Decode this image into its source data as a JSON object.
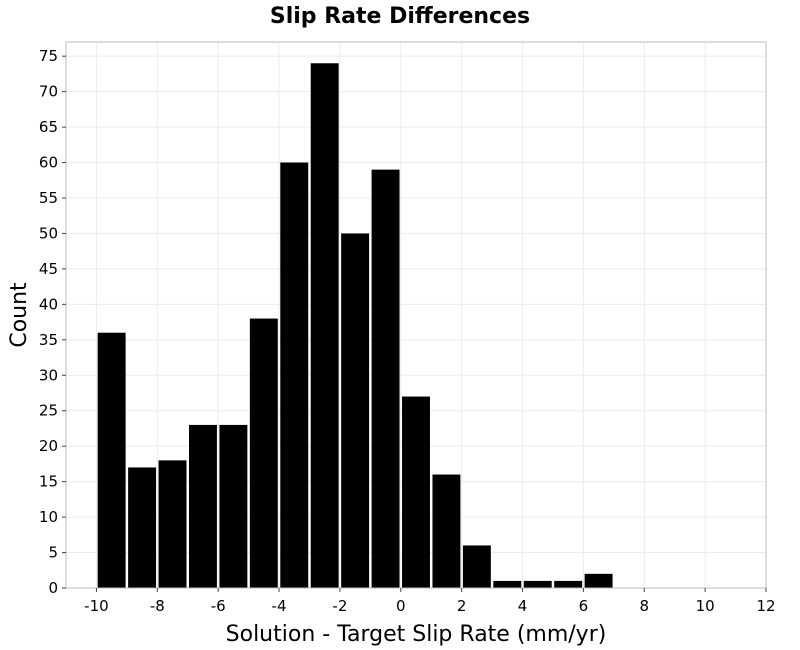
{
  "chart_data": {
    "type": "bar",
    "title": "Slip Rate Differences",
    "xlabel": "Solution - Target Slip Rate (mm/yr)",
    "ylabel": "Count",
    "xlim": [
      -11,
      12
    ],
    "ylim": [
      0,
      77
    ],
    "xticks": [
      -10,
      -8,
      -6,
      -4,
      -2,
      0,
      2,
      4,
      6,
      8,
      10,
      12
    ],
    "yticks": [
      0,
      5,
      10,
      15,
      20,
      25,
      30,
      35,
      40,
      45,
      50,
      55,
      60,
      65,
      70,
      75
    ],
    "bin_width": 1,
    "bins": [
      {
        "start": -10,
        "count": 36
      },
      {
        "start": -9,
        "count": 17
      },
      {
        "start": -8,
        "count": 18
      },
      {
        "start": -7,
        "count": 23
      },
      {
        "start": -6,
        "count": 23
      },
      {
        "start": -5,
        "count": 38
      },
      {
        "start": -4,
        "count": 60
      },
      {
        "start": -3,
        "count": 74
      },
      {
        "start": -2,
        "count": 50
      },
      {
        "start": -1,
        "count": 59
      },
      {
        "start": 0,
        "count": 27
      },
      {
        "start": 1,
        "count": 16
      },
      {
        "start": 2,
        "count": 6
      },
      {
        "start": 3,
        "count": 1
      },
      {
        "start": 4,
        "count": 1
      },
      {
        "start": 5,
        "count": 1
      },
      {
        "start": 6,
        "count": 2
      }
    ],
    "bar_color": "#000000",
    "grid": true
  }
}
